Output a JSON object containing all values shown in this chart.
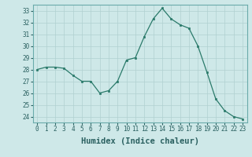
{
  "x": [
    0,
    1,
    2,
    3,
    4,
    5,
    6,
    7,
    8,
    9,
    10,
    11,
    12,
    13,
    14,
    15,
    16,
    17,
    18,
    19,
    20,
    21,
    22,
    23
  ],
  "y": [
    28.0,
    28.2,
    28.2,
    28.1,
    27.5,
    27.0,
    27.0,
    26.0,
    26.2,
    27.0,
    28.8,
    29.0,
    30.8,
    32.3,
    33.2,
    32.3,
    31.8,
    31.5,
    30.0,
    27.8,
    25.5,
    24.5,
    24.0,
    23.8
  ],
  "xlabel": "Humidex (Indice chaleur)",
  "ylabel": "",
  "title": "",
  "background_color": "#cee8e8",
  "grid_color": "#b0d0d0",
  "line_color": "#2a7a6a",
  "marker_color": "#2a7a6a",
  "ylim": [
    23.5,
    33.5
  ],
  "yticks": [
    24,
    25,
    26,
    27,
    28,
    29,
    30,
    31,
    32,
    33
  ],
  "xticks": [
    0,
    1,
    2,
    3,
    4,
    5,
    6,
    7,
    8,
    9,
    10,
    11,
    12,
    13,
    14,
    15,
    16,
    17,
    18,
    19,
    20,
    21,
    22,
    23
  ],
  "tick_label_fontsize": 5.5,
  "xlabel_fontsize": 7.5,
  "tick_color": "#2a6060",
  "spine_color": "#6aabab"
}
